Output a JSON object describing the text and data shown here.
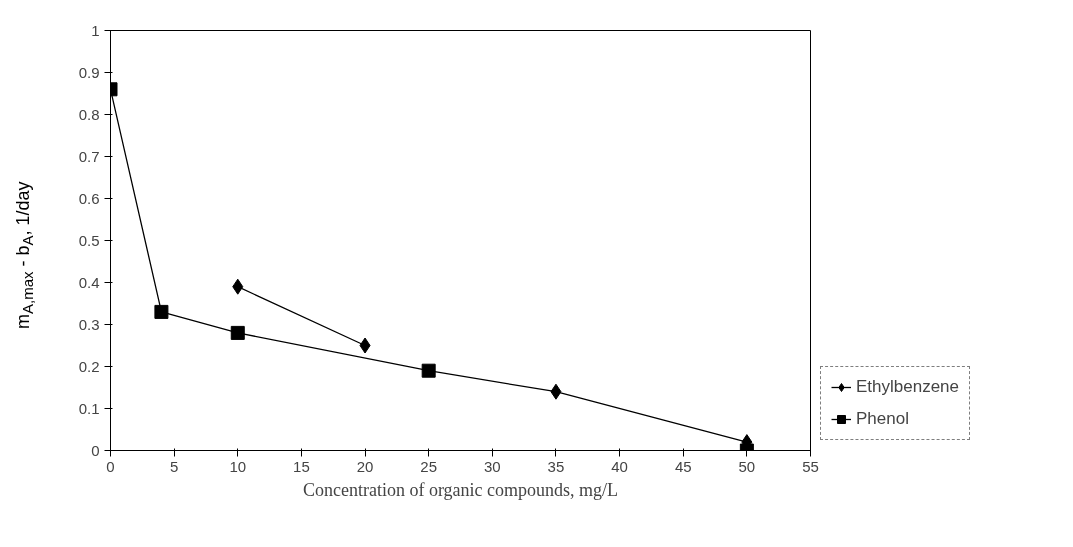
{
  "chart_data": {
    "type": "line",
    "xlabel": "Concentration of organic compounds, mg/L",
    "ylabel": "m$_{A,max}$ - b$_{A}$, 1/day",
    "xlim": [
      0,
      55
    ],
    "xticks": [
      0,
      5,
      10,
      15,
      20,
      25,
      30,
      35,
      40,
      45,
      50,
      55
    ],
    "ylim": [
      0,
      1
    ],
    "yticks": [
      0,
      0.1,
      0.2,
      0.3,
      0.4,
      0.5,
      0.6,
      0.7,
      0.8,
      0.9,
      1
    ],
    "grid": false,
    "legend": "right",
    "series": [
      {
        "name": "Ethylbenzene",
        "color": "#000000",
        "marker": "diamond",
        "x": [
          10,
          20,
          30,
          35,
          50
        ],
        "values": [
          0.39,
          0.25,
          null,
          0.14,
          0.02
        ]
      },
      {
        "name": "Phenol",
        "color": "#000000",
        "marker": "square",
        "x": [
          0,
          4,
          10,
          25,
          40,
          50
        ],
        "values": [
          0.86,
          0.33,
          0.28,
          0.19,
          null,
          0.0
        ]
      },
      {
        "color": "#000000",
        "marker": "none",
        "x": [
          25,
          35
        ],
        "values": [
          0.19,
          0.14
        ]
      }
    ]
  }
}
